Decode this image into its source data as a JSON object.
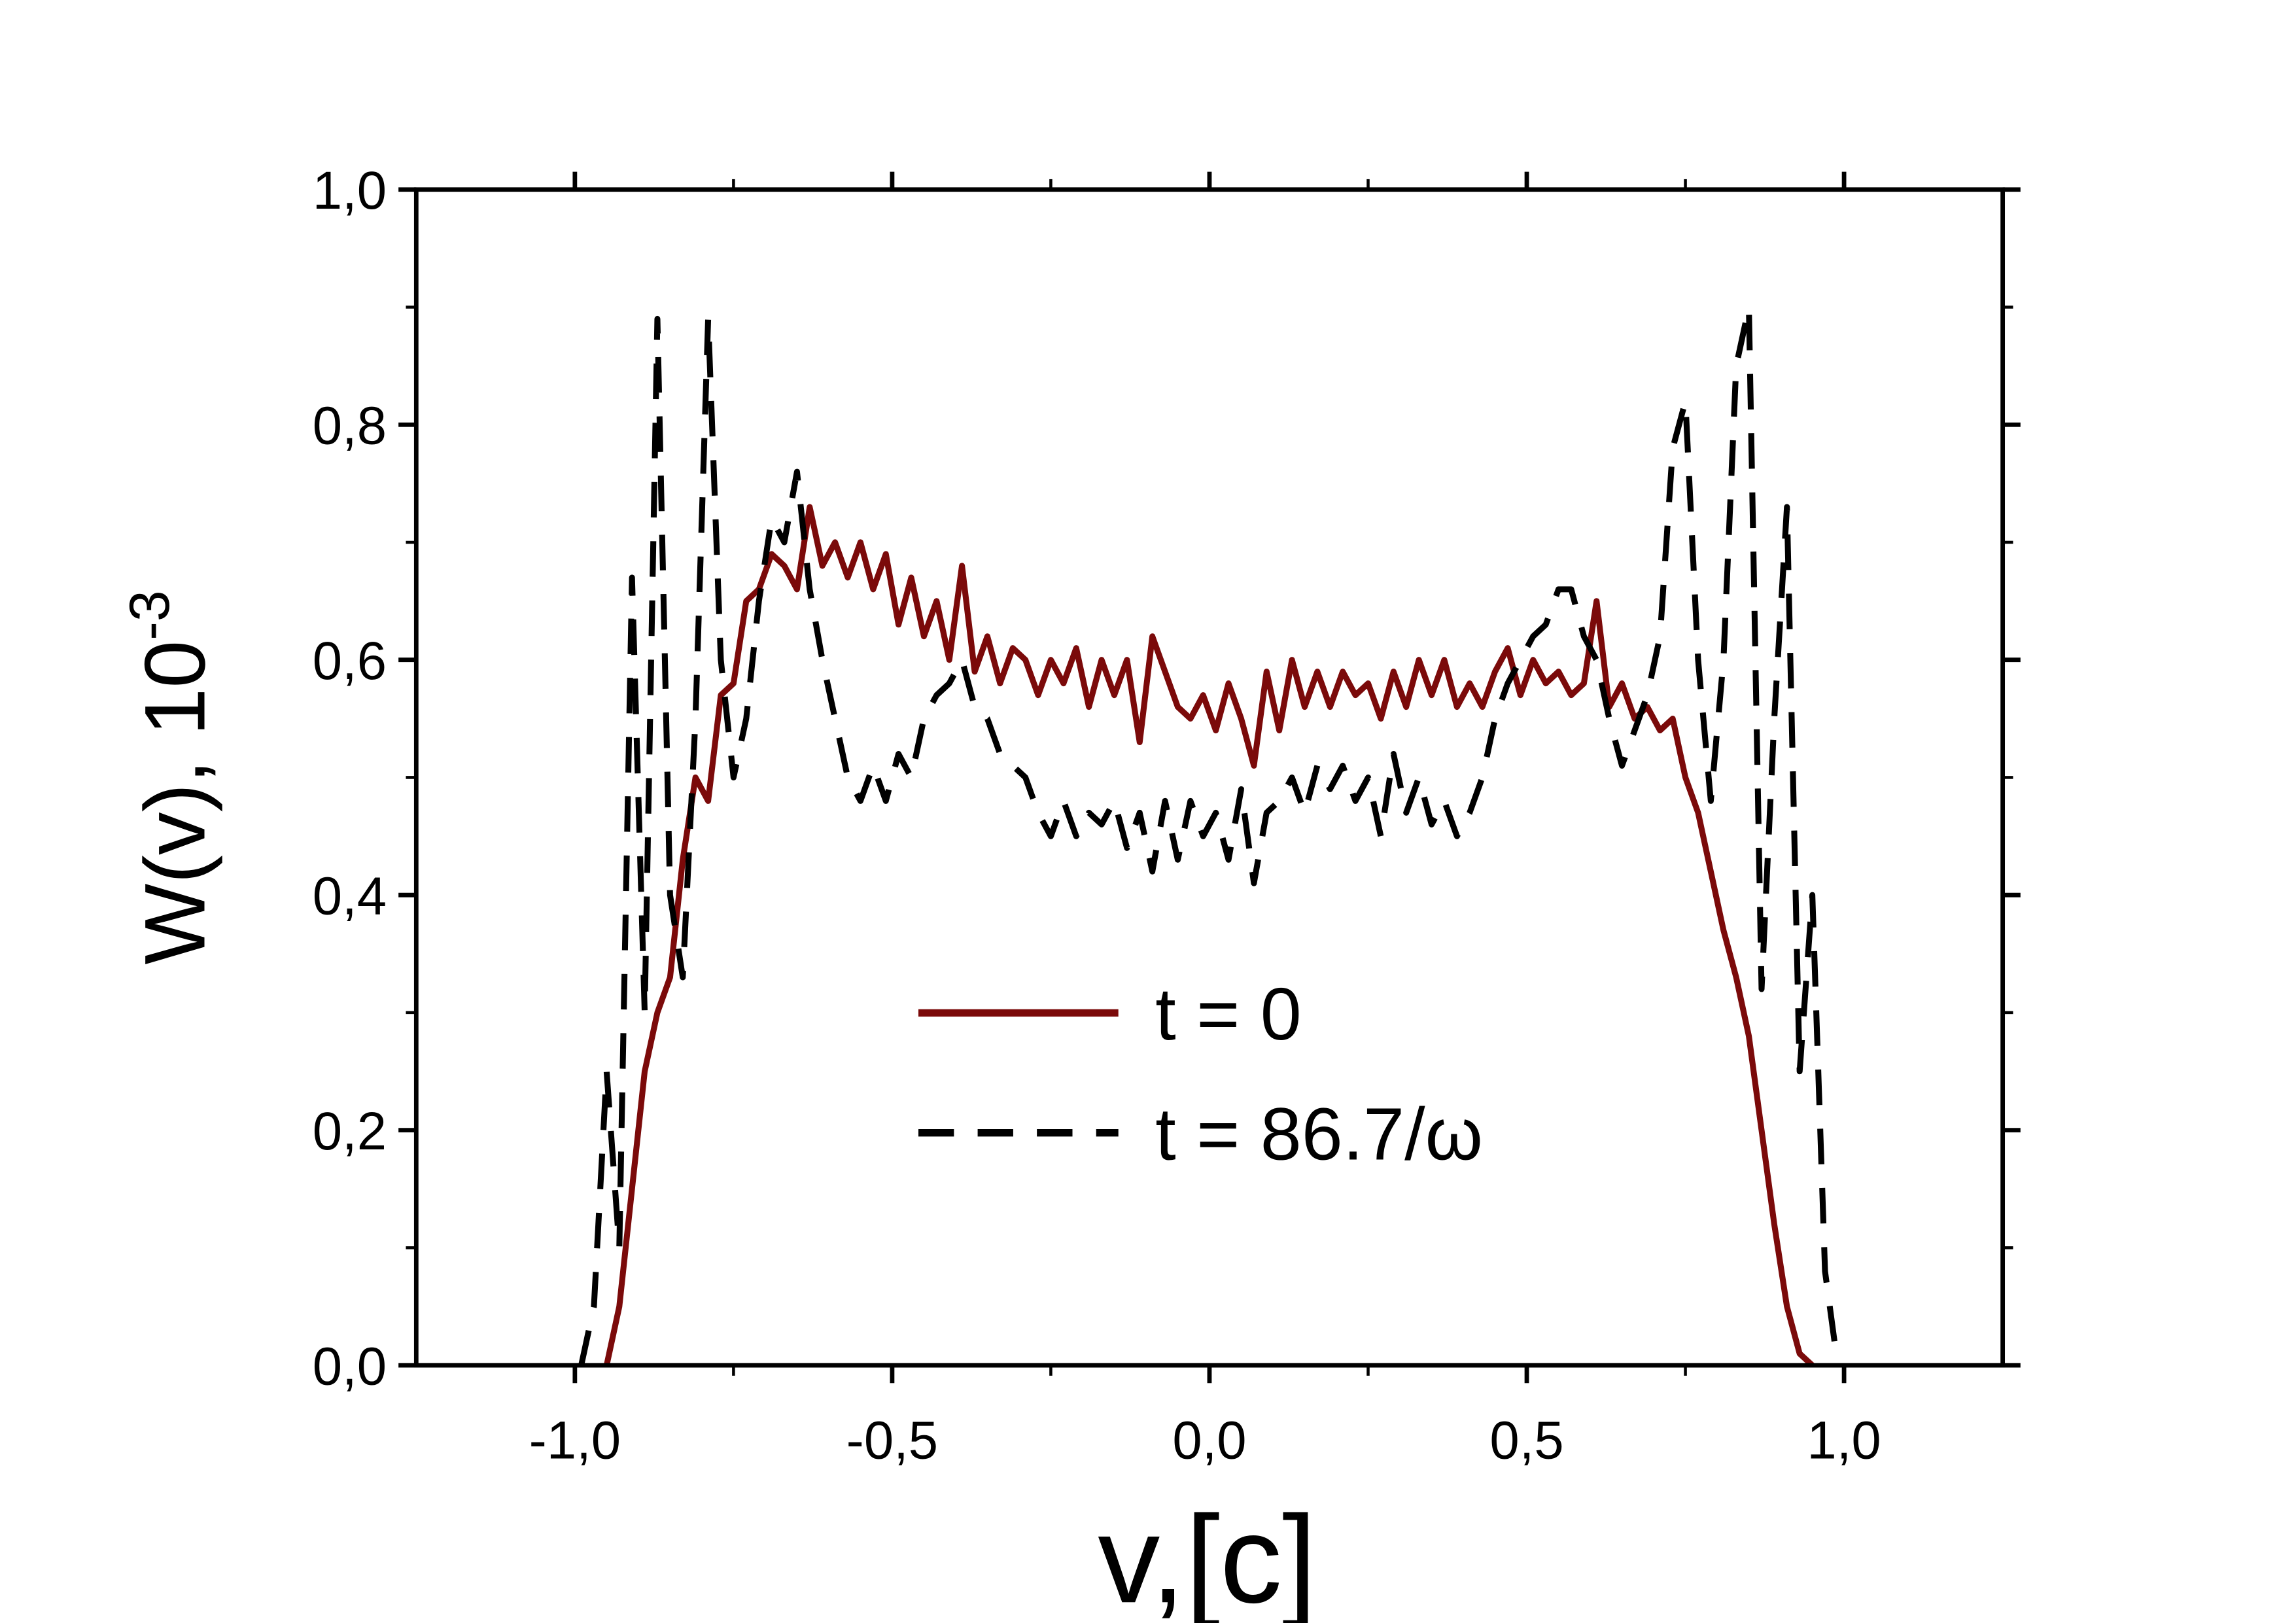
{
  "chart_data": {
    "type": "line",
    "x_label": "v,[c]",
    "y_label": "W(v),  10",
    "y_label_exponent": "-3",
    "xlim": [
      -1.25,
      1.25
    ],
    "ylim": [
      0,
      1.0
    ],
    "xticks": [
      {
        "value": -1.0,
        "label": "-1,0"
      },
      {
        "value": -0.5,
        "label": "-0,5"
      },
      {
        "value": 0.0,
        "label": "0,0"
      },
      {
        "value": 0.5,
        "label": "0,5"
      },
      {
        "value": 1.0,
        "label": "1,0"
      }
    ],
    "yticks": [
      {
        "value": 0.0,
        "label": "0,0"
      },
      {
        "value": 0.2,
        "label": "0,2"
      },
      {
        "value": 0.4,
        "label": "0,4"
      },
      {
        "value": 0.6,
        "label": "0,6"
      },
      {
        "value": 0.8,
        "label": "0,8"
      },
      {
        "value": 1.0,
        "label": "1,0"
      }
    ],
    "grid": false,
    "series": [
      {
        "name": "t = 0",
        "color": "#7b0a0a",
        "dash": "solid",
        "x": [
          -0.95,
          -0.93,
          -0.91,
          -0.89,
          -0.87,
          -0.85,
          -0.83,
          -0.81,
          -0.79,
          -0.77,
          -0.75,
          -0.73,
          -0.71,
          -0.69,
          -0.67,
          -0.65,
          -0.63,
          -0.61,
          -0.59,
          -0.57,
          -0.55,
          -0.53,
          -0.51,
          -0.49,
          -0.47,
          -0.45,
          -0.43,
          -0.41,
          -0.39,
          -0.37,
          -0.35,
          -0.33,
          -0.31,
          -0.29,
          -0.27,
          -0.25,
          -0.23,
          -0.21,
          -0.19,
          -0.17,
          -0.15,
          -0.13,
          -0.11,
          -0.09,
          -0.07,
          -0.05,
          -0.03,
          -0.01,
          0.01,
          0.03,
          0.05,
          0.07,
          0.09,
          0.11,
          0.13,
          0.15,
          0.17,
          0.19,
          0.21,
          0.23,
          0.25,
          0.27,
          0.29,
          0.31,
          0.33,
          0.35,
          0.37,
          0.39,
          0.41,
          0.43,
          0.45,
          0.47,
          0.49,
          0.51,
          0.53,
          0.55,
          0.57,
          0.59,
          0.61,
          0.63,
          0.65,
          0.67,
          0.69,
          0.71,
          0.73,
          0.75,
          0.77,
          0.79,
          0.81,
          0.83,
          0.85,
          0.87,
          0.89,
          0.91,
          0.93,
          0.95
        ],
        "values": [
          0,
          0.05,
          0.15,
          0.25,
          0.3,
          0.33,
          0.43,
          0.5,
          0.48,
          0.57,
          0.58,
          0.65,
          0.66,
          0.69,
          0.68,
          0.66,
          0.73,
          0.68,
          0.7,
          0.67,
          0.7,
          0.66,
          0.69,
          0.63,
          0.67,
          0.62,
          0.65,
          0.6,
          0.68,
          0.59,
          0.62,
          0.58,
          0.61,
          0.6,
          0.57,
          0.6,
          0.58,
          0.61,
          0.56,
          0.6,
          0.57,
          0.6,
          0.53,
          0.62,
          0.59,
          0.56,
          0.55,
          0.57,
          0.54,
          0.58,
          0.55,
          0.51,
          0.59,
          0.54,
          0.6,
          0.56,
          0.59,
          0.56,
          0.59,
          0.57,
          0.58,
          0.55,
          0.59,
          0.56,
          0.6,
          0.57,
          0.6,
          0.56,
          0.58,
          0.56,
          0.59,
          0.61,
          0.57,
          0.6,
          0.58,
          0.59,
          0.57,
          0.58,
          0.65,
          0.56,
          0.58,
          0.55,
          0.56,
          0.54,
          0.55,
          0.5,
          0.47,
          0.42,
          0.37,
          0.33,
          0.28,
          0.2,
          0.12,
          0.05,
          0.01,
          0
        ]
      },
      {
        "name": "t = 86.7/ω",
        "color": "#000000",
        "dash": "dashed",
        "x": [
          -0.99,
          -0.97,
          -0.95,
          -0.93,
          -0.91,
          -0.89,
          -0.87,
          -0.85,
          -0.83,
          -0.81,
          -0.79,
          -0.77,
          -0.75,
          -0.73,
          -0.71,
          -0.69,
          -0.67,
          -0.65,
          -0.63,
          -0.61,
          -0.59,
          -0.57,
          -0.55,
          -0.53,
          -0.51,
          -0.49,
          -0.47,
          -0.45,
          -0.43,
          -0.41,
          -0.39,
          -0.37,
          -0.35,
          -0.33,
          -0.31,
          -0.29,
          -0.27,
          -0.25,
          -0.23,
          -0.21,
          -0.19,
          -0.17,
          -0.15,
          -0.13,
          -0.11,
          -0.09,
          -0.07,
          -0.05,
          -0.03,
          -0.01,
          0.01,
          0.03,
          0.05,
          0.07,
          0.09,
          0.11,
          0.13,
          0.15,
          0.17,
          0.19,
          0.21,
          0.23,
          0.25,
          0.27,
          0.29,
          0.31,
          0.33,
          0.35,
          0.37,
          0.39,
          0.41,
          0.43,
          0.45,
          0.47,
          0.49,
          0.51,
          0.53,
          0.55,
          0.57,
          0.59,
          0.61,
          0.63,
          0.65,
          0.67,
          0.69,
          0.71,
          0.73,
          0.75,
          0.77,
          0.79,
          0.81,
          0.83,
          0.85,
          0.87,
          0.89,
          0.91,
          0.93,
          0.95,
          0.97,
          0.99
        ],
        "values": [
          0,
          0.05,
          0.25,
          0.1,
          0.67,
          0.3,
          0.89,
          0.4,
          0.33,
          0.55,
          0.89,
          0.6,
          0.5,
          0.55,
          0.65,
          0.72,
          0.7,
          0.76,
          0.66,
          0.6,
          0.55,
          0.5,
          0.48,
          0.51,
          0.48,
          0.52,
          0.5,
          0.55,
          0.57,
          0.58,
          0.6,
          0.56,
          0.55,
          0.52,
          0.51,
          0.5,
          0.47,
          0.45,
          0.48,
          0.45,
          0.47,
          0.46,
          0.48,
          0.44,
          0.47,
          0.42,
          0.48,
          0.43,
          0.48,
          0.45,
          0.47,
          0.43,
          0.49,
          0.41,
          0.47,
          0.48,
          0.5,
          0.47,
          0.51,
          0.49,
          0.51,
          0.48,
          0.5,
          0.45,
          0.52,
          0.47,
          0.5,
          0.46,
          0.48,
          0.45,
          0.47,
          0.5,
          0.55,
          0.58,
          0.6,
          0.62,
          0.63,
          0.66,
          0.66,
          0.62,
          0.6,
          0.55,
          0.51,
          0.54,
          0.57,
          0.62,
          0.78,
          0.82,
          0.6,
          0.48,
          0.6,
          0.85,
          0.9,
          0.32,
          0.55,
          0.73,
          0.25,
          0.4,
          0.08,
          0
        ]
      }
    ]
  }
}
